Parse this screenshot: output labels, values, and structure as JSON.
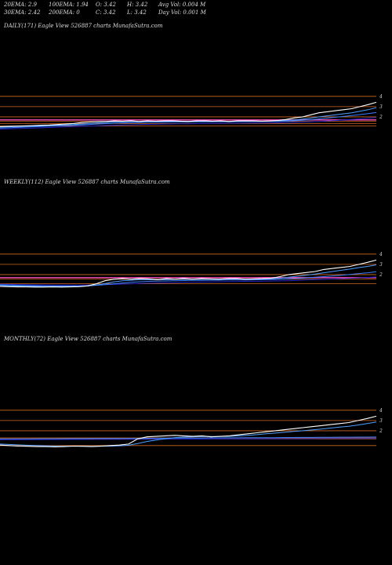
{
  "header": {
    "ema20": "20EMA: 2.9",
    "ema100": "100EMA: 1.94",
    "open": "O: 3.42",
    "high": "H: 3.42",
    "avg_vol": "Avg Vol: 0.004  M",
    "ema30": "30EMA: 2.42",
    "ema200": "200EMA: 0",
    "close": "C: 3.42",
    "low": "L: 3.42",
    "day_vol": "Day Vol: 0.001 M"
  },
  "colors": {
    "background": "#000000",
    "price": "#ffffff",
    "ema_short": "#4f9fff",
    "ema_long": "#2020c0",
    "ema_mid": "#3a7dff",
    "ema_pink": "#ff50c0",
    "level_lines": "#d2691e",
    "ma_gray": "#c0c0c0"
  },
  "chart_data": [
    {
      "type": "line",
      "title": "DAILY(171) Eagle  View  526887 charts MunafaSutra.com",
      "yticks": [
        "4",
        "3",
        "2"
      ],
      "levels": [
        4,
        3,
        2,
        1.7,
        1.55,
        1.35,
        1.1
      ],
      "ylim": [
        0,
        4.6
      ],
      "series": [
        {
          "key": "price",
          "values": [
            1.05,
            1.08,
            1.1,
            1.12,
            1.15,
            1.18,
            1.2,
            1.25,
            1.3,
            1.35,
            1.45,
            1.5,
            1.55,
            1.55,
            1.6,
            1.58,
            1.62,
            1.55,
            1.6,
            1.58,
            1.6,
            1.62,
            1.58,
            1.55,
            1.6,
            1.62,
            1.58,
            1.6,
            1.55,
            1.6,
            1.62,
            1.6,
            1.58,
            1.6,
            1.65,
            1.75,
            1.9,
            2.0,
            2.2,
            2.4,
            2.5,
            2.6,
            2.7,
            2.8,
            3.0,
            3.2,
            3.42
          ]
        },
        {
          "key": "ema_short",
          "values": [
            1.0,
            1.03,
            1.05,
            1.08,
            1.1,
            1.12,
            1.15,
            1.18,
            1.22,
            1.25,
            1.3,
            1.35,
            1.42,
            1.45,
            1.5,
            1.52,
            1.55,
            1.53,
            1.55,
            1.55,
            1.56,
            1.57,
            1.56,
            1.55,
            1.56,
            1.57,
            1.57,
            1.58,
            1.56,
            1.57,
            1.58,
            1.58,
            1.57,
            1.58,
            1.6,
            1.65,
            1.7,
            1.78,
            1.88,
            2.0,
            2.1,
            2.2,
            2.3,
            2.4,
            2.55,
            2.7,
            2.9
          ]
        },
        {
          "key": "ema_mid",
          "values": [
            0.9,
            0.93,
            0.96,
            1.0,
            1.03,
            1.06,
            1.09,
            1.12,
            1.15,
            1.18,
            1.22,
            1.26,
            1.3,
            1.34,
            1.38,
            1.41,
            1.44,
            1.45,
            1.47,
            1.48,
            1.49,
            1.5,
            1.5,
            1.5,
            1.51,
            1.52,
            1.52,
            1.53,
            1.52,
            1.53,
            1.54,
            1.54,
            1.54,
            1.55,
            1.56,
            1.58,
            1.62,
            1.66,
            1.72,
            1.8,
            1.88,
            1.96,
            2.04,
            2.12,
            2.22,
            2.32,
            2.42
          ]
        },
        {
          "key": "ema_long",
          "values": [
            0.8,
            0.82,
            0.85,
            0.88,
            0.9,
            0.93,
            0.96,
            0.99,
            1.02,
            1.05,
            1.08,
            1.1,
            1.13,
            1.16,
            1.18,
            1.2,
            1.23,
            1.25,
            1.27,
            1.28,
            1.3,
            1.31,
            1.32,
            1.33,
            1.34,
            1.35,
            1.36,
            1.37,
            1.37,
            1.38,
            1.39,
            1.4,
            1.4,
            1.41,
            1.42,
            1.44,
            1.46,
            1.49,
            1.52,
            1.56,
            1.6,
            1.65,
            1.7,
            1.75,
            1.8,
            1.87,
            1.94
          ]
        }
      ]
    },
    {
      "type": "line",
      "title": "WEEKLY(112) Eagle  View  526887 charts MunafaSutra.com",
      "yticks": [
        "4",
        "3",
        "2"
      ],
      "levels": [
        4,
        3,
        2,
        1.7,
        1.55,
        1.1
      ],
      "ylim": [
        0,
        4.6
      ],
      "series": [
        {
          "key": "price",
          "values": [
            0.85,
            0.82,
            0.8,
            0.8,
            0.78,
            0.78,
            0.8,
            0.78,
            0.8,
            0.82,
            0.9,
            1.1,
            1.4,
            1.55,
            1.6,
            1.55,
            1.62,
            1.58,
            1.5,
            1.6,
            1.55,
            1.62,
            1.55,
            1.6,
            1.58,
            1.55,
            1.6,
            1.62,
            1.55,
            1.58,
            1.6,
            1.65,
            1.8,
            2.0,
            2.1,
            2.2,
            2.3,
            2.5,
            2.6,
            2.7,
            2.8,
            3.0,
            3.2,
            3.42
          ]
        },
        {
          "key": "ema_short",
          "values": [
            0.95,
            0.9,
            0.88,
            0.86,
            0.84,
            0.83,
            0.82,
            0.82,
            0.82,
            0.84,
            0.88,
            0.98,
            1.12,
            1.28,
            1.4,
            1.45,
            1.5,
            1.52,
            1.5,
            1.52,
            1.53,
            1.55,
            1.54,
            1.55,
            1.56,
            1.55,
            1.56,
            1.57,
            1.56,
            1.56,
            1.57,
            1.59,
            1.65,
            1.75,
            1.85,
            1.95,
            2.05,
            2.18,
            2.3,
            2.42,
            2.54,
            2.68,
            2.8,
            2.95
          ]
        },
        {
          "key": "ema_mid",
          "values": [
            1.0,
            0.97,
            0.95,
            0.93,
            0.91,
            0.9,
            0.89,
            0.88,
            0.88,
            0.88,
            0.9,
            0.95,
            1.02,
            1.1,
            1.18,
            1.24,
            1.3,
            1.34,
            1.36,
            1.38,
            1.4,
            1.42,
            1.43,
            1.44,
            1.45,
            1.46,
            1.47,
            1.48,
            1.48,
            1.49,
            1.5,
            1.51,
            1.54,
            1.58,
            1.63,
            1.68,
            1.74,
            1.8,
            1.87,
            1.94,
            2.02,
            2.1,
            2.18,
            2.28
          ]
        },
        {
          "key": "ema_long",
          "values": [
            1.05,
            1.04,
            1.02,
            1.01,
            1.0,
            0.99,
            0.98,
            0.97,
            0.97,
            0.97,
            0.97,
            0.99,
            1.01,
            1.04,
            1.07,
            1.1,
            1.13,
            1.16,
            1.18,
            1.2,
            1.22,
            1.24,
            1.26,
            1.27,
            1.29,
            1.3,
            1.31,
            1.33,
            1.34,
            1.35,
            1.36,
            1.37,
            1.39,
            1.41,
            1.44,
            1.47,
            1.5,
            1.53,
            1.57,
            1.6,
            1.64,
            1.68,
            1.72,
            1.77
          ]
        }
      ]
    },
    {
      "type": "line",
      "title": "MONTHLY(72) Eagle  View  526887 charts MunafaSutra.com",
      "yticks": [
        "4",
        "3",
        "2"
      ],
      "levels": [
        4,
        3,
        2,
        1.3,
        1.2,
        0.55
      ],
      "ylim": [
        0,
        4.6
      ],
      "series": [
        {
          "key": "price",
          "values": [
            0.6,
            0.55,
            0.5,
            0.48,
            0.45,
            0.45,
            0.42,
            0.45,
            0.5,
            0.48,
            0.45,
            0.5,
            0.55,
            0.6,
            0.7,
            1.2,
            1.4,
            1.45,
            1.5,
            1.55,
            1.5,
            1.45,
            1.5,
            1.4,
            1.45,
            1.5,
            1.6,
            1.7,
            1.8,
            1.9,
            2.0,
            2.1,
            2.2,
            2.3,
            2.4,
            2.5,
            2.6,
            2.7,
            2.8,
            3.0,
            3.2,
            3.42
          ]
        },
        {
          "key": "ema_short",
          "values": [
            0.7,
            0.66,
            0.62,
            0.58,
            0.55,
            0.53,
            0.5,
            0.49,
            0.49,
            0.49,
            0.48,
            0.49,
            0.5,
            0.53,
            0.58,
            0.75,
            0.95,
            1.1,
            1.22,
            1.32,
            1.38,
            1.41,
            1.44,
            1.43,
            1.44,
            1.46,
            1.5,
            1.56,
            1.62,
            1.7,
            1.77,
            1.85,
            1.93,
            2.0,
            2.08,
            2.17,
            2.26,
            2.35,
            2.44,
            2.56,
            2.7,
            2.85
          ]
        },
        {
          "key": "ema_mid",
          "values": [
            1.2,
            1.2,
            1.21,
            1.21,
            1.22,
            1.22,
            1.22,
            1.23,
            1.23,
            1.23,
            1.24,
            1.24,
            1.24,
            1.25,
            1.25,
            1.26,
            1.26,
            1.27,
            1.27,
            1.28,
            1.28,
            1.29,
            1.29,
            1.3,
            1.3,
            1.31,
            1.31,
            1.32,
            1.32,
            1.33,
            1.33,
            1.34,
            1.34,
            1.35,
            1.35,
            1.36,
            1.36,
            1.37,
            1.37,
            1.38,
            1.38,
            1.39
          ]
        },
        {
          "key": "ema_long",
          "values": [
            1.12,
            1.12,
            1.13,
            1.13,
            1.13,
            1.14,
            1.14,
            1.14,
            1.15,
            1.15,
            1.15,
            1.16,
            1.16,
            1.16,
            1.17,
            1.17,
            1.17,
            1.18,
            1.18,
            1.18,
            1.19,
            1.19,
            1.19,
            1.2,
            1.2,
            1.2,
            1.21,
            1.21,
            1.21,
            1.22,
            1.22,
            1.22,
            1.23,
            1.23,
            1.23,
            1.24,
            1.24,
            1.24,
            1.25,
            1.25,
            1.25,
            1.26
          ]
        }
      ]
    }
  ]
}
